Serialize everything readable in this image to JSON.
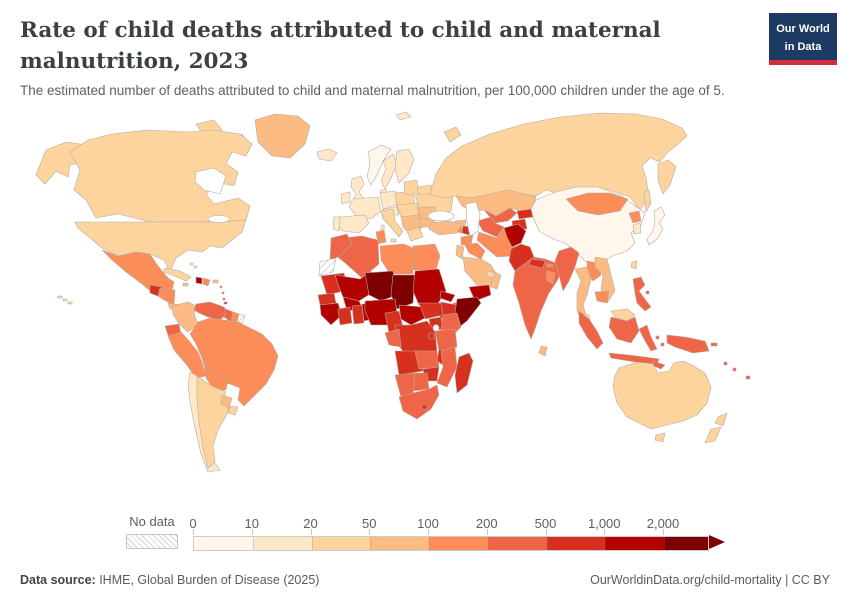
{
  "header": {
    "title": "Rate of child deaths attributed to child and maternal malnutrition, 2023",
    "subtitle": "The estimated number of deaths attributed to child and maternal malnutrition, per 100,000 children under the age of 5."
  },
  "logo": {
    "line1": "Our World",
    "line2": "in Data",
    "bg": "#1d3a63",
    "accent": "#cf2e41"
  },
  "legend": {
    "no_data_label": "No data",
    "ticks": [
      "0",
      "10",
      "20",
      "50",
      "100",
      "200",
      "500",
      "1,000",
      "2,000"
    ]
  },
  "footer": {
    "source_label": "Data source:",
    "source_text": " IHME, Global Burden of Disease (2025)",
    "right_text": "OurWorldinData.org/child-mortality | CC BY"
  },
  "chart_data": {
    "type": "choropleth",
    "title": "Rate of child deaths attributed to child and maternal malnutrition, 2023",
    "unit": "deaths per 100,000 children under the age of 5",
    "year": "2023",
    "projection": "world",
    "legend_bins": [
      {
        "label": "0-10",
        "color": "#fff7ec"
      },
      {
        "label": "10-20",
        "color": "#fee8c8"
      },
      {
        "label": "20-50",
        "color": "#fdd49e"
      },
      {
        "label": "50-100",
        "color": "#fdbb84"
      },
      {
        "label": "100-200",
        "color": "#fc8d59"
      },
      {
        "label": "200-500",
        "color": "#ef6548"
      },
      {
        "label": "500-1000",
        "color": "#d7301f"
      },
      {
        "label": "1000-2000",
        "color": "#b30000"
      },
      {
        "label": "2000+",
        "color": "#7f0000"
      }
    ],
    "no_data_color_pattern": "diagonal-hatch",
    "regions": {
      "usa": "20-50",
      "hawaii": "20-50",
      "canada": "20-50",
      "greenland": "50-100",
      "mexico": "100-200",
      "guatemala": "500-1000",
      "honduras-nicaragua": "100-200",
      "costa-rica-panama": "50-100",
      "cuba": "20-50",
      "jamaica": "50-100",
      "haiti": "1000-2000",
      "dominican-republic": "100-200",
      "puerto-rico": "50-100",
      "lesser-antilles": "200-500",
      "trinidad-tobago": "500-1000",
      "bahamas": "10-20",
      "colombia": "50-100",
      "venezuela": "200-500",
      "guyana": "200-500",
      "suriname": "100-200",
      "french-guiana": "no-data",
      "ecuador": "200-500",
      "peru": "100-200",
      "brazil": "100-200",
      "bolivia": "100-200",
      "paraguay": "50-100",
      "chile": "10-20",
      "argentina": "20-50",
      "uruguay": "20-50",
      "iceland": "10-20",
      "ireland": "10-20",
      "united-kingdom": "10-20",
      "norway": "0-10",
      "sweden": "10-20",
      "finland": "10-20",
      "denmark": "10-20",
      "germany": "10-20",
      "france": "10-20",
      "spain": "10-20",
      "portugal": "10-20",
      "italy": "20-50",
      "alpine-states": "10-20",
      "central-europe": "20-50",
      "poland": "20-50",
      "baltic-states": "20-50",
      "belarus": "20-50",
      "ukraine": "20-50",
      "romania": "50-100",
      "bulgaria": "50-100",
      "western-balkans": "50-100",
      "greece": "20-50",
      "svalbard": "10-20",
      "russia": "20-50",
      "kazakhstan": "50-100",
      "uzbekistan": "200-500",
      "turkmenistan": "200-500",
      "kyrgyzstan": "500-1000",
      "tajikistan": "500-1000",
      "georgia": "50-100",
      "armenia": "100-200",
      "azerbaijan": "500-1000",
      "turkey": "50-100",
      "syria": "100-200",
      "iraq": "100-200",
      "levant": "50-100",
      "saudi-arabia": "50-100",
      "yemen": "1000-2000",
      "oman": "50-100",
      "uae-qatar": "20-50",
      "iran": "100-200",
      "afghanistan": "1000-2000",
      "pakistan": "500-1000",
      "india": "200-500",
      "nepal": "500-1000",
      "bhutan": "100-200",
      "bangladesh": "100-200",
      "sri-lanka": "50-100",
      "china": "0-10",
      "mongolia": "100-200",
      "north-korea": "100-200",
      "south-korea": "10-20",
      "japan": "0-10",
      "taiwan": "20-50",
      "myanmar": "200-500",
      "thailand": "50-100",
      "laos": "100-200",
      "vietnam": "50-100",
      "cambodia": "100-200",
      "malaysia": "20-50",
      "indonesia": "200-500",
      "timor": "200-500",
      "philippines": "200-500",
      "papua-new-guinea": "200-500",
      "melanesia": "200-500",
      "australia": "20-50",
      "new-zealand": "20-50",
      "morocco": "200-500",
      "western-sahara": "no-data",
      "algeria": "200-500",
      "tunisia": "100-200",
      "libya": "100-200",
      "egypt": "100-200",
      "mauritania": "500-1000",
      "mali": "1000-2000",
      "niger": "2000+",
      "chad": "2000+",
      "sudan": "1000-2000",
      "eritrea": "1000-2000",
      "djibouti": "200-500",
      "ethiopia": "500-1000",
      "somalia": "2000+",
      "senegal-gambia": "500-1000",
      "guinea-group": "1000-2000",
      "ivory-coast": "500-1000",
      "ghana": "500-1000",
      "togo-benin": "1000-2000",
      "burkina-faso": "1000-2000",
      "nigeria": "1000-2000",
      "cameroon": "500-1000",
      "central-african-republic": "1000-2000",
      "south-sudan": "500-1000",
      "uganda": "500-1000",
      "kenya": "200-500",
      "drc": "500-1000",
      "congo-gabon": "200-500",
      "rwanda-burundi": "500-1000",
      "tanzania": "200-500",
      "angola": "500-1000",
      "zambia": "200-500",
      "malawi": "500-1000",
      "mozambique": "200-500",
      "zimbabwe": "500-1000",
      "botswana": "200-500",
      "namibia": "200-500",
      "south-africa": "200-500",
      "lesotho": "500-1000",
      "madagascar": "500-1000"
    }
  }
}
